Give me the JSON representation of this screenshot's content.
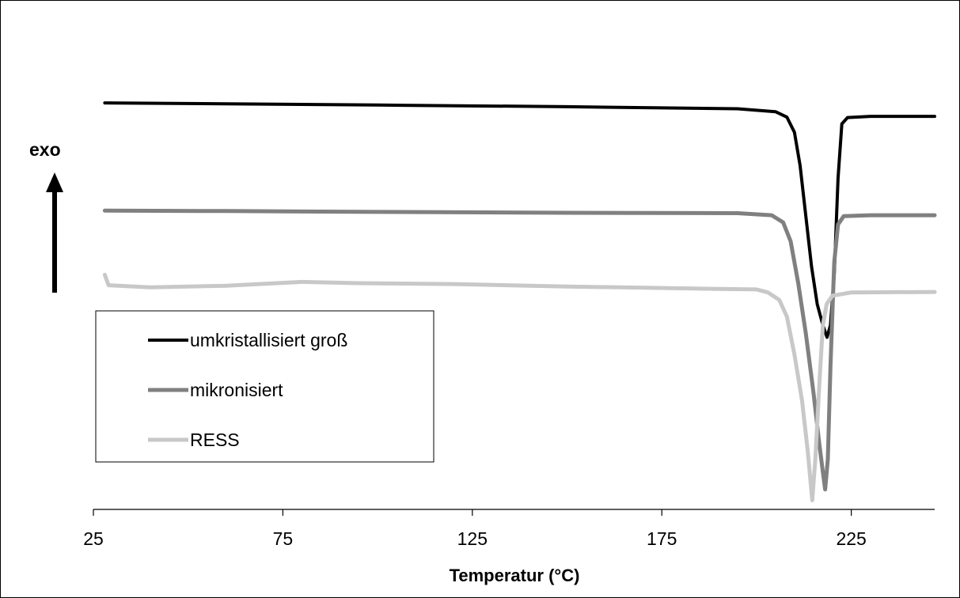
{
  "chart_data": {
    "type": "line",
    "title": "",
    "xlabel": "Temperatur (°C)",
    "ylabel": "",
    "exo_label": "exo",
    "xlim": [
      25,
      247
    ],
    "ylim": [
      0,
      100
    ],
    "xticks": [
      25,
      75,
      125,
      175,
      225
    ],
    "legend_position": "bottom-left",
    "grid": false,
    "y_axis_shown": false,
    "series": [
      {
        "name": "umkristallisiert groß",
        "color": "#000000",
        "points": [
          [
            28,
            93
          ],
          [
            60,
            92.8
          ],
          [
            100,
            92.5
          ],
          [
            150,
            92.1
          ],
          [
            195,
            91.6
          ],
          [
            205,
            90.9
          ],
          [
            208,
            89.6
          ],
          [
            210,
            86
          ],
          [
            211.5,
            78
          ],
          [
            213,
            66
          ],
          [
            214.5,
            54
          ],
          [
            216,
            45
          ],
          [
            217.5,
            40
          ],
          [
            218.6,
            37.1
          ],
          [
            219.5,
            40
          ],
          [
            220.5,
            52
          ],
          [
            221.5,
            75
          ],
          [
            222.5,
            88
          ],
          [
            224,
            89.5
          ],
          [
            230,
            89.8
          ],
          [
            247,
            89.8
          ]
        ]
      },
      {
        "name": "mikronisiert",
        "color": "#808080",
        "points": [
          [
            28,
            67.3
          ],
          [
            60,
            67.2
          ],
          [
            100,
            67
          ],
          [
            150,
            66.8
          ],
          [
            195,
            66.7
          ],
          [
            204,
            66.2
          ],
          [
            207,
            64.5
          ],
          [
            209,
            60
          ],
          [
            211,
            50
          ],
          [
            213,
            38
          ],
          [
            215,
            24
          ],
          [
            216.5,
            12
          ],
          [
            217.5,
            5
          ],
          [
            218.1,
            0.8
          ],
          [
            218.8,
            8
          ],
          [
            219.5,
            30
          ],
          [
            220.5,
            55
          ],
          [
            221.5,
            64
          ],
          [
            223,
            66
          ],
          [
            230,
            66.2
          ],
          [
            247,
            66.2
          ]
        ]
      },
      {
        "name": "RESS",
        "color": "#c8c8c8",
        "points": [
          [
            28,
            52
          ],
          [
            29,
            49.5
          ],
          [
            40,
            49
          ],
          [
            60,
            49.4
          ],
          [
            80,
            50.3
          ],
          [
            95,
            50
          ],
          [
            120,
            49.8
          ],
          [
            150,
            49.2
          ],
          [
            185,
            48.7
          ],
          [
            200,
            48.5
          ],
          [
            203,
            47.8
          ],
          [
            206,
            46
          ],
          [
            208,
            42
          ],
          [
            210,
            33
          ],
          [
            212,
            22
          ],
          [
            213.5,
            10
          ],
          [
            214.7,
            -1.8
          ],
          [
            215.5,
            8
          ],
          [
            216.5,
            25
          ],
          [
            217.5,
            40
          ],
          [
            218.5,
            45
          ],
          [
            220,
            47
          ],
          [
            225,
            47.8
          ],
          [
            247,
            47.9
          ]
        ]
      }
    ]
  }
}
